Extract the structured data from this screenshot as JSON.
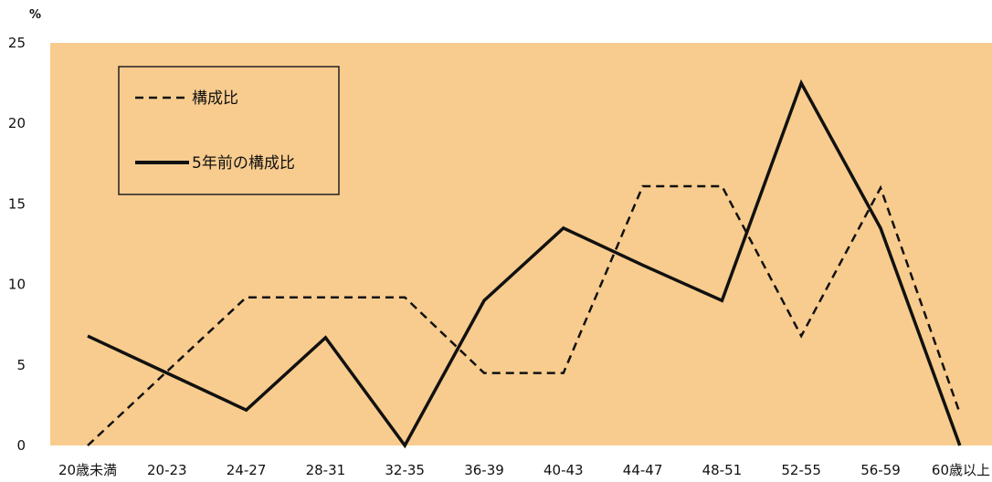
{
  "chart_data": {
    "type": "line",
    "unit_label": "%",
    "categories": [
      "20歳未満",
      "20-23",
      "24-27",
      "28-31",
      "32-35",
      "36-39",
      "40-43",
      "44-47",
      "48-51",
      "52-55",
      "56-59",
      "60歳以上"
    ],
    "series": [
      {
        "name": "構成比",
        "line_style": "dashed",
        "color": "#111111",
        "values": [
          0,
          4.6,
          9.2,
          9.2,
          9.2,
          4.5,
          4.5,
          16.1,
          16.1,
          6.8,
          16.0,
          2.0
        ]
      },
      {
        "name": "5年前の構成比",
        "line_style": "solid",
        "color": "#111111",
        "values": [
          6.8,
          4.5,
          2.2,
          6.7,
          0,
          9.0,
          13.5,
          11.2,
          9.0,
          22.5,
          13.5,
          0
        ]
      }
    ],
    "y_ticks": [
      0,
      5,
      10,
      15,
      20,
      25
    ],
    "ylim": [
      0,
      25
    ],
    "grid": false,
    "legend_position": "top-left",
    "plot_background": "#f8cc8e"
  }
}
